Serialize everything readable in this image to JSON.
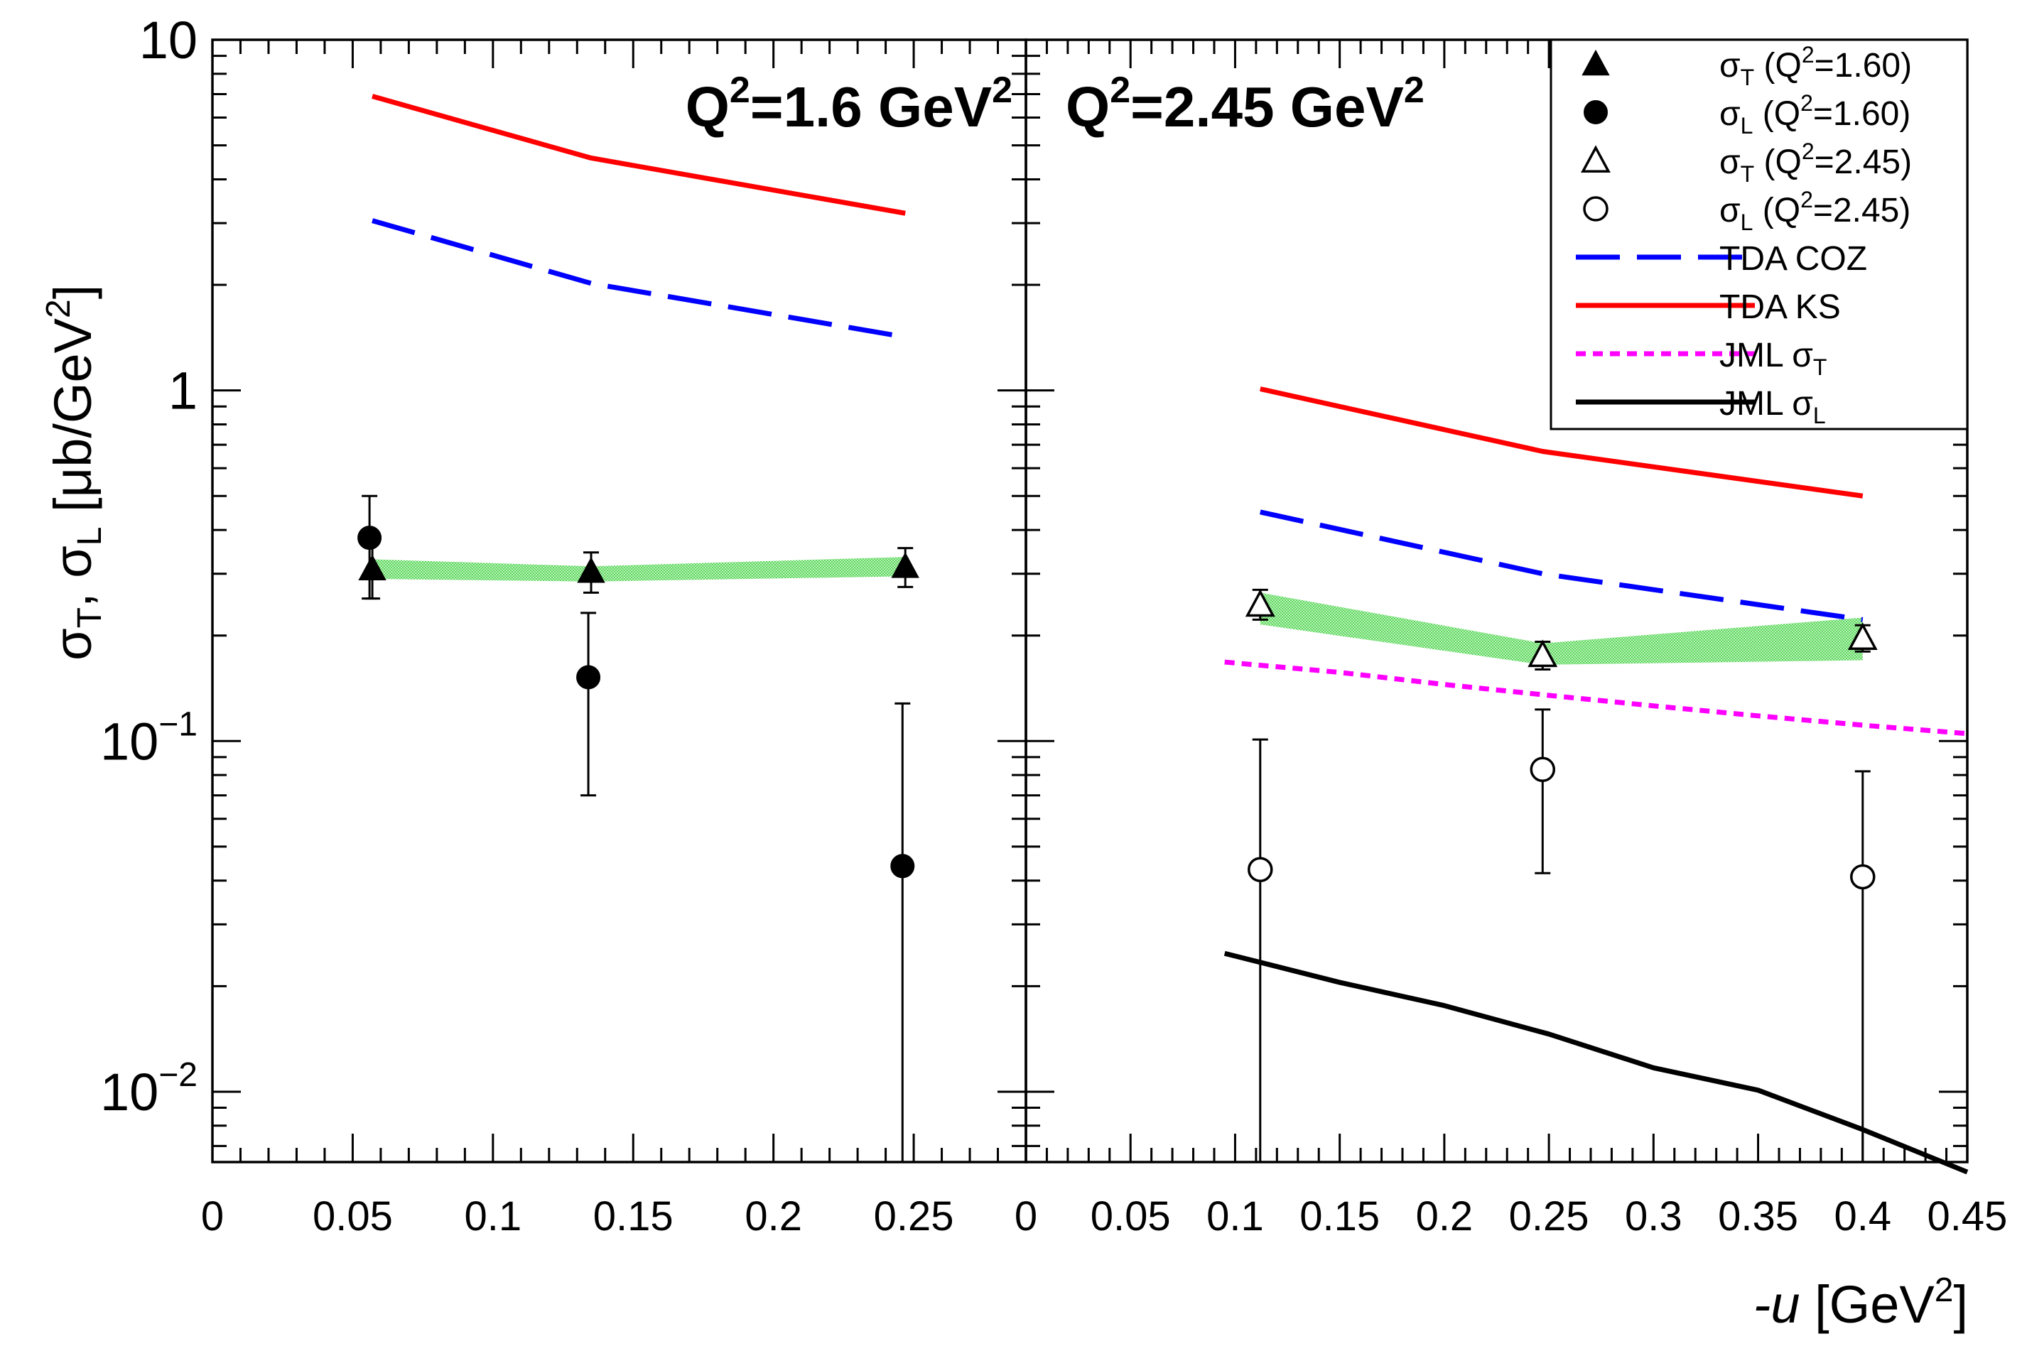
{
  "chart_data": {
    "type": "scatter",
    "ylabel": {
      "main": "σ",
      "sub1": "T",
      "mid": ", σ",
      "sub2": "L",
      "unit": " [μb/GeV",
      "sup": "2",
      "end": "]"
    },
    "xlabel": {
      "var": "-u",
      "unit": " [GeV",
      "sup": "2",
      "end": "]"
    },
    "y_tick_labels": [
      {
        "value": 10,
        "base": "10",
        "exp": ""
      },
      {
        "value": 1,
        "base": "1",
        "exp": ""
      },
      {
        "value": 0.1,
        "base": "10",
        "exp": "−1"
      },
      {
        "value": 0.01,
        "base": "10",
        "exp": "−2"
      }
    ],
    "yscale": "log",
    "ylim": [
      0.0063,
      10
    ],
    "panels": [
      {
        "title": {
          "pre": "Q",
          "sup": "2",
          "mid": "=1.6 GeV",
          "sup2": "2"
        },
        "xlim": [
          0,
          0.29
        ],
        "xticks": [
          "0",
          "0.05",
          "0.1",
          "0.15",
          "0.2",
          "0.25"
        ],
        "xtick_values": [
          0,
          0.05,
          0.1,
          0.15,
          0.2,
          0.25
        ],
        "band": {
          "x": [
            0.057,
            0.135,
            0.247
          ],
          "low": [
            0.29,
            0.285,
            0.295
          ],
          "high": [
            0.33,
            0.315,
            0.335
          ]
        },
        "series": [
          {
            "name": "σT (Q²=1.60)",
            "marker": "triangle-filled",
            "x": [
              0.057,
              0.135,
              0.247
            ],
            "y": [
              0.31,
              0.305,
              0.315
            ],
            "err_low": [
              0.255,
              0.265,
              0.275
            ],
            "err_high": [
              0.385,
              0.345,
              0.355
            ]
          },
          {
            "name": "σL (Q²=1.60)",
            "marker": "circle-filled",
            "x": [
              0.056,
              0.134,
              0.246
            ],
            "y": [
              0.38,
              0.152,
              0.044
            ],
            "err_low": [
              0.255,
              0.07,
              0.006
            ],
            "err_high": [
              0.5,
              0.232,
              0.128
            ]
          }
        ],
        "curves": [
          {
            "name": "TDA KS",
            "style": "solid-red",
            "x": [
              0.057,
              0.135,
              0.247
            ],
            "y": [
              6.9,
              4.6,
              3.2
            ]
          },
          {
            "name": "TDA COZ",
            "style": "dashed-blue",
            "x": [
              0.057,
              0.135,
              0.247
            ],
            "y": [
              3.05,
              2.02,
              1.42
            ]
          }
        ]
      },
      {
        "title": {
          "pre": "Q",
          "sup": "2",
          "mid": "=2.45 GeV",
          "sup2": "2"
        },
        "xlim": [
          0,
          0.45
        ],
        "xticks": [
          "0",
          "0.05",
          "0.1",
          "0.15",
          "0.2",
          "0.25",
          "0.3",
          "0.35",
          "0.4",
          "0.45"
        ],
        "xtick_values": [
          0,
          0.05,
          0.1,
          0.15,
          0.2,
          0.25,
          0.3,
          0.35,
          0.4,
          0.45
        ],
        "band": {
          "x": [
            0.112,
            0.247,
            0.4
          ],
          "low": [
            0.215,
            0.165,
            0.17
          ],
          "high": [
            0.265,
            0.19,
            0.225
          ]
        },
        "series": [
          {
            "name": "σT (Q²=2.45)",
            "marker": "triangle-open",
            "x": [
              0.112,
              0.247,
              0.4
            ],
            "y": [
              0.245,
              0.176,
              0.197
            ],
            "err_low": [
              0.222,
              0.16,
              0.18
            ],
            "err_high": [
              0.27,
              0.192,
              0.214
            ]
          },
          {
            "name": "σL (Q²=2.45)",
            "marker": "circle-open",
            "x": [
              0.112,
              0.247,
              0.4
            ],
            "y": [
              0.043,
              0.083,
              0.041
            ],
            "err_low": [
              0.006,
              0.042,
              0.006
            ],
            "err_high": [
              0.101,
              0.123,
              0.082
            ]
          }
        ],
        "curves": [
          {
            "name": "TDA KS",
            "style": "solid-red",
            "x": [
              0.112,
              0.247,
              0.4
            ],
            "y": [
              1.01,
              0.67,
              0.5
            ]
          },
          {
            "name": "TDA COZ",
            "style": "dashed-blue",
            "x": [
              0.112,
              0.247,
              0.4
            ],
            "y": [
              0.45,
              0.3,
              0.222
            ]
          },
          {
            "name": "JML σT",
            "style": "dotted-magenta",
            "x": [
              0.095,
              0.15,
              0.2,
              0.25,
              0.3,
              0.35,
              0.4,
              0.45
            ],
            "y": [
              0.168,
              0.157,
              0.145,
              0.135,
              0.126,
              0.118,
              0.111,
              0.105
            ]
          },
          {
            "name": "JML σL",
            "style": "solid-black",
            "x": [
              0.095,
              0.15,
              0.2,
              0.25,
              0.3,
              0.35,
              0.4,
              0.45
            ],
            "y": [
              0.0248,
              0.0205,
              0.0176,
              0.0146,
              0.0117,
              0.0101,
              0.0078,
              0.0059
            ]
          }
        ]
      }
    ],
    "legend": {
      "placement": "top-right",
      "entries": [
        {
          "marker": "triangle-filled",
          "sym": "σ",
          "sub": "T",
          "pre": " (Q",
          "sup": "2",
          "post": "=1.60)"
        },
        {
          "marker": "circle-filled",
          "sym": "σ",
          "sub": "L",
          "pre": " (Q",
          "sup": "2",
          "post": "=1.60)"
        },
        {
          "marker": "triangle-open",
          "sym": "σ",
          "sub": "T",
          "pre": " (Q",
          "sup": "2",
          "post": "=2.45)"
        },
        {
          "marker": "circle-open",
          "sym": "σ",
          "sub": "L",
          "pre": " (Q",
          "sup": "2",
          "post": "=2.45)"
        },
        {
          "marker": "dashed-blue",
          "text": "TDA COZ"
        },
        {
          "marker": "solid-red",
          "text": "TDA KS"
        },
        {
          "marker": "dotted-magenta",
          "text": "JML σ",
          "sub": "T"
        },
        {
          "marker": "solid-black",
          "text": "JML σ",
          "sub": "L"
        }
      ]
    },
    "colors": {
      "ks": "#ff0000",
      "coz": "#0000ff",
      "jml_t": "#ff00ff",
      "jml_l": "#000000",
      "band": "#6ee56e"
    }
  }
}
